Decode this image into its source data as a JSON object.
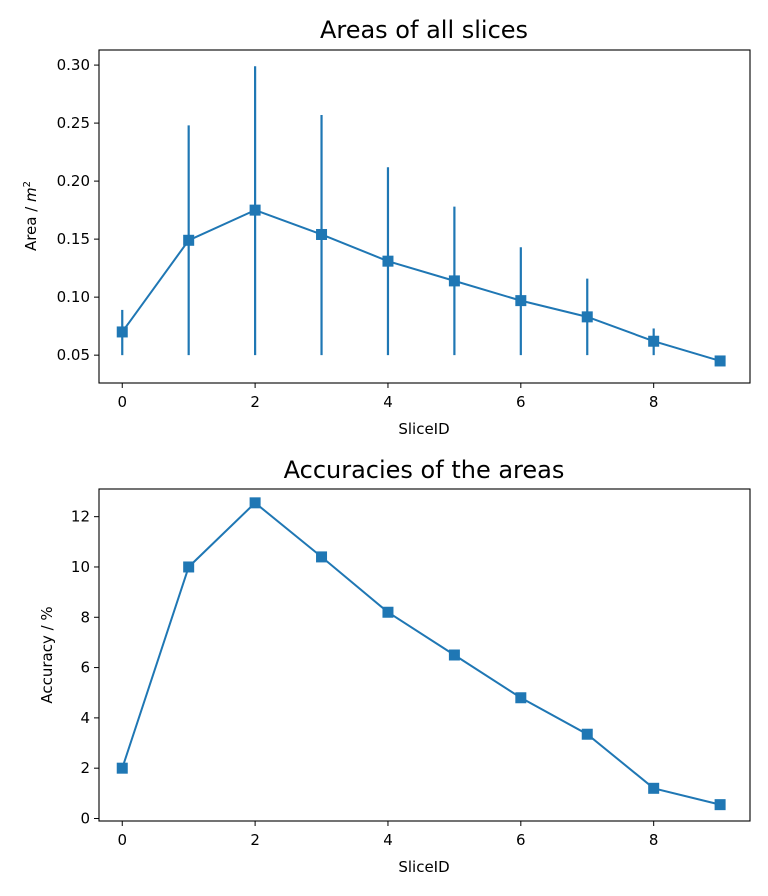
{
  "chart_data": [
    {
      "type": "line",
      "title": "Areas of all slices",
      "xlabel": "SliceID",
      "ylabel_main": "Area / ",
      "ylabel_unit": "m",
      "ylabel_exp": "2",
      "xlim": [
        -0.35,
        9.45
      ],
      "ylim": [
        0.026,
        0.313
      ],
      "xticks": [
        0,
        2,
        4,
        6,
        8
      ],
      "xtick_labels": [
        "0",
        "2",
        "4",
        "6",
        "8"
      ],
      "yticks": [
        0.05,
        0.1,
        0.15,
        0.2,
        0.25,
        0.3
      ],
      "ytick_labels": [
        "0.05",
        "0.10",
        "0.15",
        "0.20",
        "0.25",
        "0.30"
      ],
      "grid": false,
      "color": "#1f77b4",
      "marker": "square",
      "series": [
        {
          "x": [
            0,
            1,
            2,
            3,
            4,
            5,
            6,
            7,
            8,
            9
          ],
          "y": [
            0.07,
            0.149,
            0.175,
            0.154,
            0.131,
            0.114,
            0.097,
            0.083,
            0.062,
            0.045
          ],
          "error_low": [
            0.05,
            0.05,
            0.05,
            0.05,
            0.05,
            0.05,
            0.05,
            0.05,
            0.05,
            0.045
          ],
          "error_high": [
            0.089,
            0.248,
            0.299,
            0.257,
            0.212,
            0.178,
            0.143,
            0.116,
            0.073,
            0.045
          ]
        }
      ]
    },
    {
      "type": "line",
      "title": "Accuracies of the areas",
      "xlabel": "SliceID",
      "ylabel": "Accuracy / %",
      "xlim": [
        -0.35,
        9.45
      ],
      "ylim": [
        -0.1,
        13.1
      ],
      "xticks": [
        0,
        2,
        4,
        6,
        8
      ],
      "xtick_labels": [
        "0",
        "2",
        "4",
        "6",
        "8"
      ],
      "yticks": [
        0,
        2,
        4,
        6,
        8,
        10,
        12
      ],
      "ytick_labels": [
        "0",
        "2",
        "4",
        "6",
        "8",
        "10",
        "12"
      ],
      "grid": false,
      "color": "#1f77b4",
      "marker": "square",
      "series": [
        {
          "x": [
            0,
            1,
            2,
            3,
            4,
            5,
            6,
            7,
            8,
            9
          ],
          "y": [
            2.0,
            10.0,
            12.55,
            10.4,
            8.2,
            6.5,
            4.8,
            3.35,
            1.2,
            0.55
          ]
        }
      ]
    }
  ]
}
